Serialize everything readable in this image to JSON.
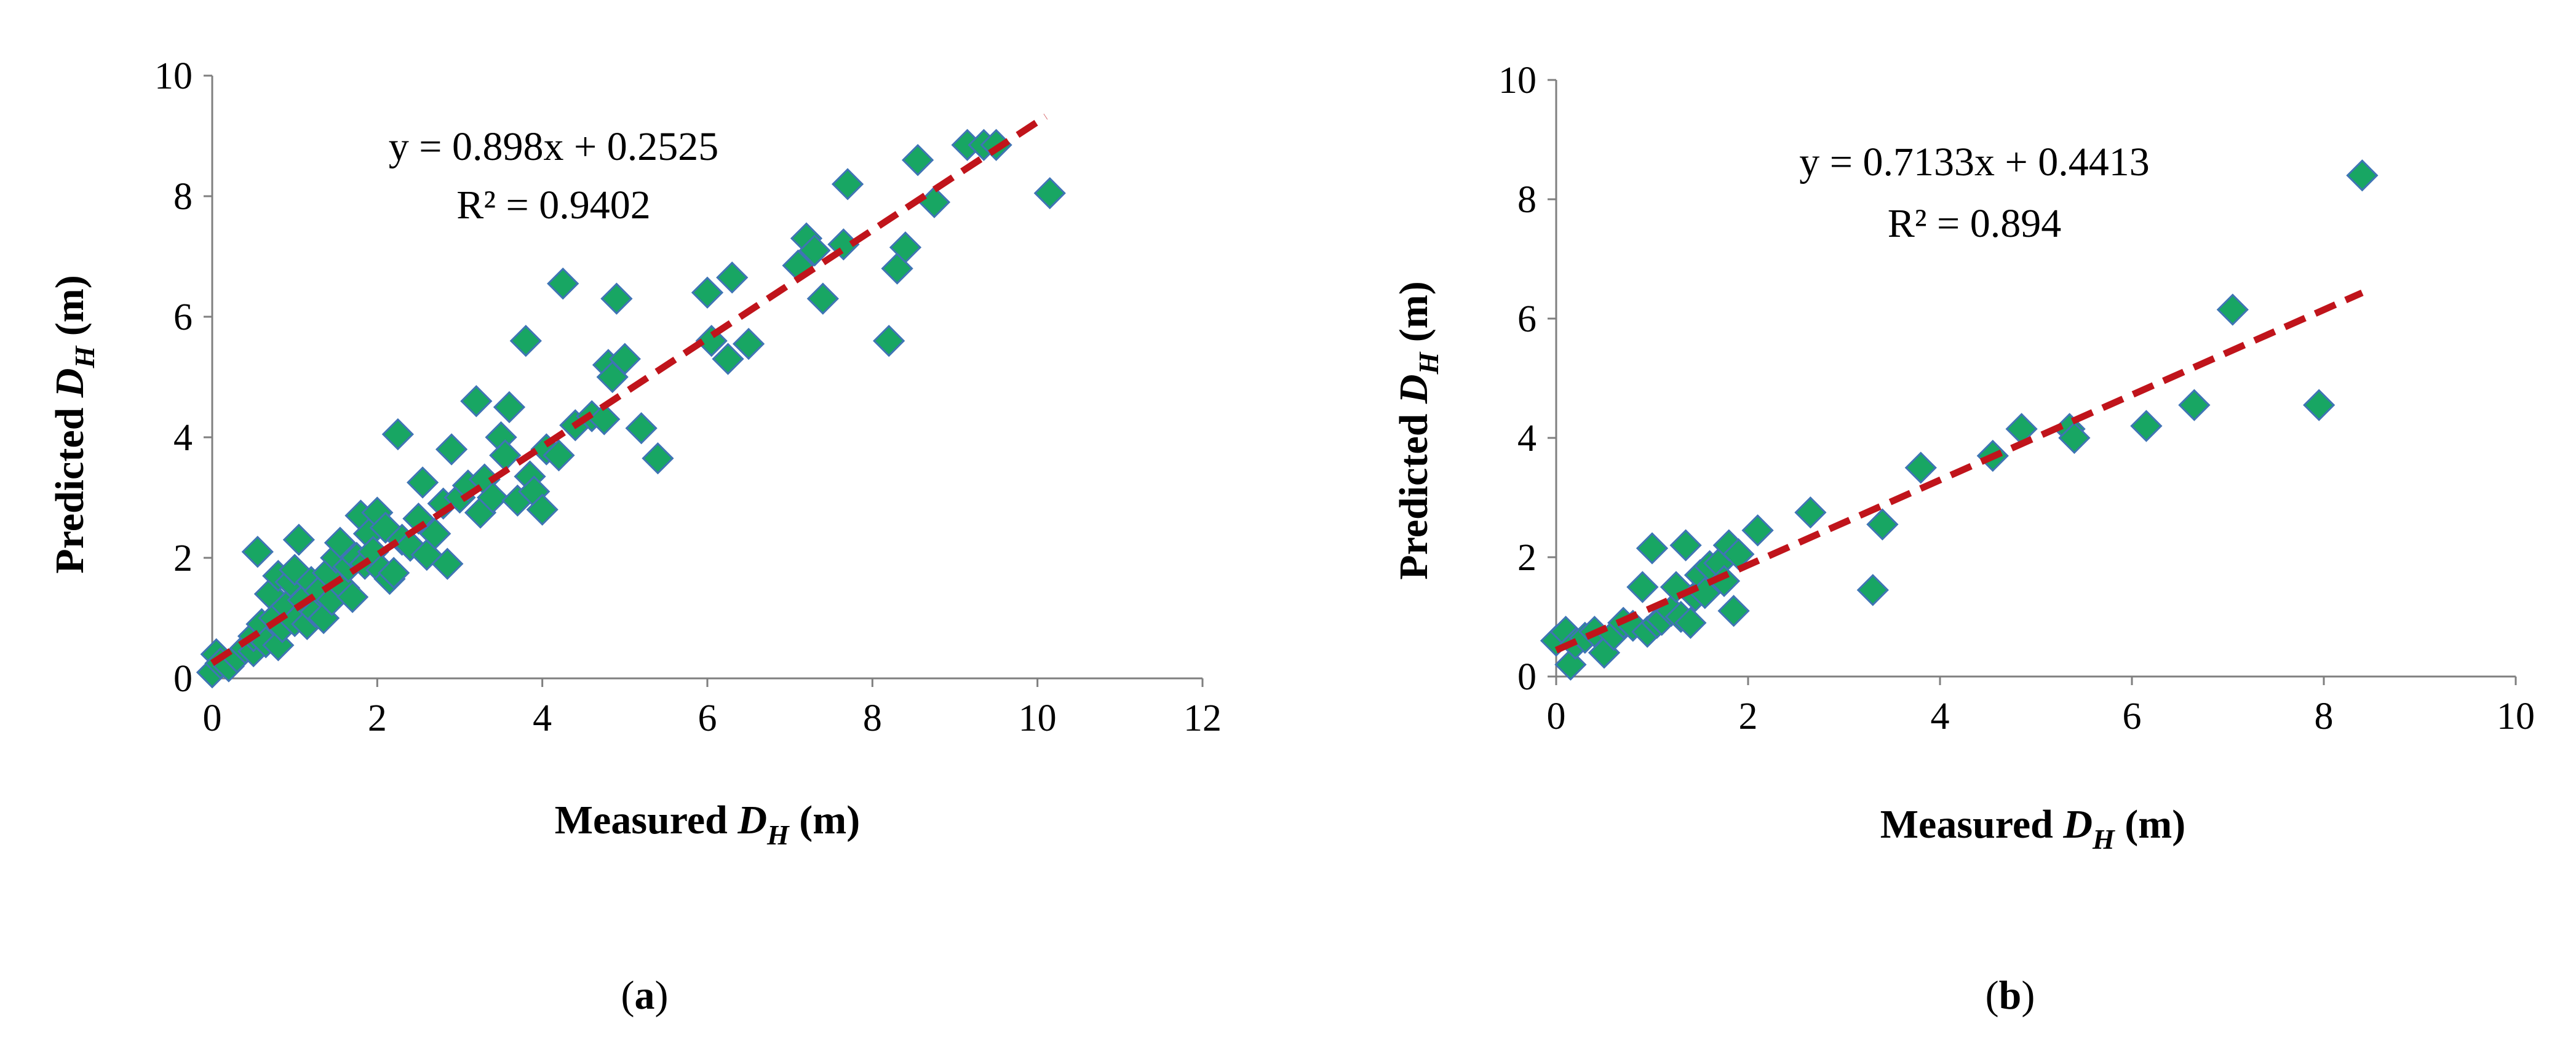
{
  "chart_data": [
    {
      "type": "scatter",
      "panel": "a",
      "caption": {
        "open": "(",
        "letter": "a",
        "close": ")"
      },
      "xlabel": {
        "pre": "Measured ",
        "sym": "D",
        "sub": "H",
        "post": " (m)"
      },
      "ylabel": {
        "pre": "Predicted ",
        "sym": "D",
        "sub": "H",
        "post": " (m)"
      },
      "xlim": [
        0,
        12
      ],
      "ylim": [
        0,
        10
      ],
      "xticks": [
        "0",
        "2",
        "4",
        "6",
        "8",
        "10",
        "12"
      ],
      "yticks": [
        "0",
        "2",
        "4",
        "6",
        "8",
        "10"
      ],
      "trendline": {
        "equation": "y = 0.898x + 0.2525",
        "r2": "R² = 0.9402",
        "slope": 0.898,
        "intercept": 0.2525,
        "x_range": [
          0,
          10.1
        ]
      },
      "colors": {
        "marker_fill": "#18A663",
        "marker_stroke": "#3F74B5",
        "trend": "#C0141B",
        "axis": "#7F7F7F"
      },
      "points": [
        [
          0.0,
          0.1
        ],
        [
          0.05,
          0.4
        ],
        [
          0.1,
          0.25
        ],
        [
          0.2,
          0.2
        ],
        [
          0.3,
          0.35
        ],
        [
          0.4,
          0.5
        ],
        [
          0.5,
          0.45
        ],
        [
          0.5,
          0.7
        ],
        [
          0.55,
          2.1
        ],
        [
          0.6,
          0.9
        ],
        [
          0.65,
          0.6
        ],
        [
          0.7,
          1.4
        ],
        [
          0.75,
          1.0
        ],
        [
          0.8,
          1.7
        ],
        [
          0.8,
          0.55
        ],
        [
          0.85,
          0.85
        ],
        [
          0.9,
          1.2
        ],
        [
          0.95,
          1.6
        ],
        [
          1.0,
          0.95
        ],
        [
          1.0,
          1.8
        ],
        [
          1.05,
          2.3
        ],
        [
          1.1,
          1.3
        ],
        [
          1.15,
          0.9
        ],
        [
          1.2,
          1.6
        ],
        [
          1.25,
          1.1
        ],
        [
          1.3,
          1.45
        ],
        [
          1.35,
          1.0
        ],
        [
          1.4,
          1.75
        ],
        [
          1.45,
          1.3
        ],
        [
          1.5,
          2.0
        ],
        [
          1.55,
          2.25
        ],
        [
          1.6,
          1.5
        ],
        [
          1.65,
          1.85
        ],
        [
          1.7,
          1.35
        ],
        [
          1.75,
          2.0
        ],
        [
          1.8,
          2.7
        ],
        [
          1.85,
          1.9
        ],
        [
          1.9,
          2.4
        ],
        [
          1.95,
          2.1
        ],
        [
          2.0,
          2.75
        ],
        [
          2.05,
          1.8
        ],
        [
          2.1,
          2.5
        ],
        [
          2.15,
          1.65
        ],
        [
          2.2,
          1.75
        ],
        [
          2.25,
          4.05
        ],
        [
          2.3,
          2.3
        ],
        [
          2.4,
          2.2
        ],
        [
          2.5,
          2.65
        ],
        [
          2.55,
          3.25
        ],
        [
          2.6,
          2.05
        ],
        [
          2.7,
          2.4
        ],
        [
          2.8,
          2.9
        ],
        [
          2.85,
          1.9
        ],
        [
          2.9,
          3.8
        ],
        [
          3.0,
          3.0
        ],
        [
          3.1,
          3.2
        ],
        [
          3.2,
          4.6
        ],
        [
          3.25,
          2.75
        ],
        [
          3.3,
          3.3
        ],
        [
          3.4,
          3.0
        ],
        [
          3.5,
          4.0
        ],
        [
          3.55,
          3.7
        ],
        [
          3.6,
          4.5
        ],
        [
          3.7,
          2.95
        ],
        [
          3.8,
          5.6
        ],
        [
          3.85,
          3.35
        ],
        [
          3.9,
          3.1
        ],
        [
          4.0,
          2.8
        ],
        [
          4.05,
          3.8
        ],
        [
          4.2,
          3.7
        ],
        [
          4.25,
          6.55
        ],
        [
          4.4,
          4.2
        ],
        [
          4.6,
          4.35
        ],
        [
          4.75,
          4.3
        ],
        [
          4.8,
          5.2
        ],
        [
          4.85,
          5.0
        ],
        [
          4.9,
          6.3
        ],
        [
          5.0,
          5.3
        ],
        [
          5.2,
          4.15
        ],
        [
          5.4,
          3.65
        ],
        [
          6.0,
          6.4
        ],
        [
          6.05,
          5.6
        ],
        [
          6.25,
          5.3
        ],
        [
          6.3,
          6.65
        ],
        [
          6.5,
          5.55
        ],
        [
          7.1,
          6.85
        ],
        [
          7.2,
          7.3
        ],
        [
          7.3,
          7.1
        ],
        [
          7.4,
          6.3
        ],
        [
          7.65,
          7.2
        ],
        [
          7.7,
          8.2
        ],
        [
          8.2,
          5.6
        ],
        [
          8.3,
          6.8
        ],
        [
          8.4,
          7.15
        ],
        [
          8.55,
          8.6
        ],
        [
          8.75,
          7.9
        ],
        [
          9.15,
          8.85
        ],
        [
          9.35,
          8.85
        ],
        [
          9.5,
          8.85
        ],
        [
          10.15,
          8.05
        ]
      ]
    },
    {
      "type": "scatter",
      "panel": "b",
      "caption": {
        "open": "(",
        "letter": "b",
        "close": ")"
      },
      "xlabel": {
        "pre": "Measured ",
        "sym": "D",
        "sub": "H",
        "post": " (m)"
      },
      "ylabel": {
        "pre": "Predicted ",
        "sym": "D",
        "sub": "H",
        "post": " (m)"
      },
      "xlim": [
        0,
        10
      ],
      "ylim": [
        0,
        10
      ],
      "xticks": [
        "0",
        "2",
        "4",
        "6",
        "8",
        "10"
      ],
      "yticks": [
        "0",
        "2",
        "4",
        "6",
        "8",
        "10"
      ],
      "trendline": {
        "equation": "y = 0.7133x + 0.4413",
        "r2": "R² = 0.894",
        "slope": 0.7133,
        "intercept": 0.4413,
        "x_range": [
          0,
          8.4
        ]
      },
      "colors": {
        "marker_fill": "#18A663",
        "marker_stroke": "#3F74B5",
        "trend": "#C0141B",
        "axis": "#7F7F7F"
      },
      "points": [
        [
          0.0,
          0.6
        ],
        [
          0.1,
          0.75
        ],
        [
          0.15,
          0.2
        ],
        [
          0.2,
          0.55
        ],
        [
          0.3,
          0.65
        ],
        [
          0.4,
          0.75
        ],
        [
          0.5,
          0.4
        ],
        [
          0.6,
          0.7
        ],
        [
          0.7,
          0.9
        ],
        [
          0.8,
          0.85
        ],
        [
          0.9,
          1.5
        ],
        [
          0.95,
          0.75
        ],
        [
          1.0,
          2.15
        ],
        [
          1.05,
          0.9
        ],
        [
          1.1,
          0.95
        ],
        [
          1.2,
          1.1
        ],
        [
          1.25,
          1.5
        ],
        [
          1.3,
          1.0
        ],
        [
          1.35,
          2.2
        ],
        [
          1.4,
          0.9
        ],
        [
          1.45,
          1.35
        ],
        [
          1.5,
          1.7
        ],
        [
          1.55,
          1.4
        ],
        [
          1.6,
          1.85
        ],
        [
          1.7,
          1.9
        ],
        [
          1.75,
          1.6
        ],
        [
          1.8,
          2.2
        ],
        [
          1.85,
          1.1
        ],
        [
          1.9,
          2.05
        ],
        [
          2.1,
          2.45
        ],
        [
          2.65,
          2.75
        ],
        [
          3.3,
          1.45
        ],
        [
          3.4,
          2.55
        ],
        [
          3.8,
          3.5
        ],
        [
          4.55,
          3.7
        ],
        [
          4.85,
          4.15
        ],
        [
          5.35,
          4.15
        ],
        [
          5.4,
          4.0
        ],
        [
          6.15,
          4.2
        ],
        [
          6.65,
          4.55
        ],
        [
          7.05,
          6.15
        ],
        [
          7.95,
          4.55
        ],
        [
          8.4,
          8.4
        ]
      ]
    }
  ]
}
